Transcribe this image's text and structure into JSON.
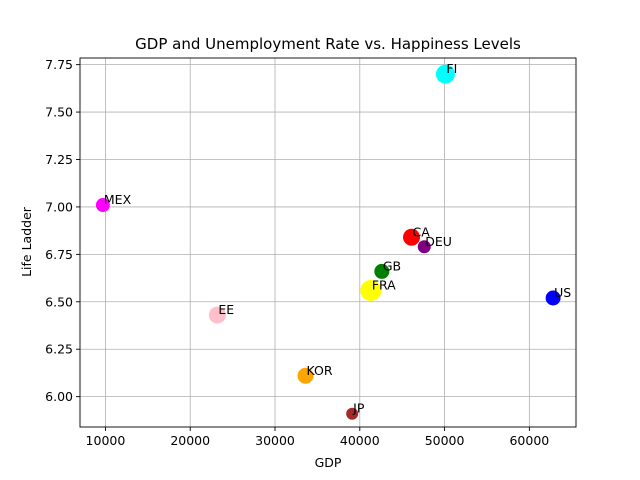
{
  "chart_data": {
    "type": "scatter",
    "title": "GDP and Unemployment Rate vs. Happiness Levels",
    "xlabel": "GDP",
    "ylabel": "Life Ladder",
    "xlim": [
      7000,
      65500
    ],
    "ylim": [
      5.84,
      7.785
    ],
    "xticks": [
      10000,
      20000,
      30000,
      40000,
      50000,
      60000
    ],
    "xtick_labels": [
      "10000",
      "20000",
      "30000",
      "40000",
      "50000",
      "60000"
    ],
    "yticks": [
      6.0,
      6.25,
      6.5,
      6.75,
      7.0,
      7.25,
      7.5,
      7.75
    ],
    "ytick_labels": [
      "6.00",
      "6.25",
      "6.50",
      "6.75",
      "7.00",
      "7.25",
      "7.50",
      "7.75"
    ],
    "grid": true,
    "points": [
      {
        "label": "MEX",
        "x": 9700,
        "y": 7.01,
        "size": 7,
        "color": "#ff00ff"
      },
      {
        "label": "EE",
        "x": 23200,
        "y": 6.43,
        "size": 8.5,
        "color": "#ffc0cb"
      },
      {
        "label": "KOR",
        "x": 33600,
        "y": 6.11,
        "size": 8,
        "color": "#ffa500"
      },
      {
        "label": "JP",
        "x": 39100,
        "y": 5.91,
        "size": 6,
        "color": "#a52a2a"
      },
      {
        "label": "FRA",
        "x": 41300,
        "y": 6.56,
        "size": 10.5,
        "color": "#ffff00"
      },
      {
        "label": "GB",
        "x": 42600,
        "y": 6.66,
        "size": 7.5,
        "color": "#008000"
      },
      {
        "label": "CA",
        "x": 46100,
        "y": 6.84,
        "size": 8.5,
        "color": "#ff0000"
      },
      {
        "label": "DEU",
        "x": 47600,
        "y": 6.79,
        "size": 6.5,
        "color": "#800080"
      },
      {
        "label": "FI",
        "x": 50100,
        "y": 7.7,
        "size": 9.5,
        "color": "#00ffff"
      },
      {
        "label": "US",
        "x": 62800,
        "y": 6.52,
        "size": 7.5,
        "color": "#0000ff"
      }
    ]
  }
}
